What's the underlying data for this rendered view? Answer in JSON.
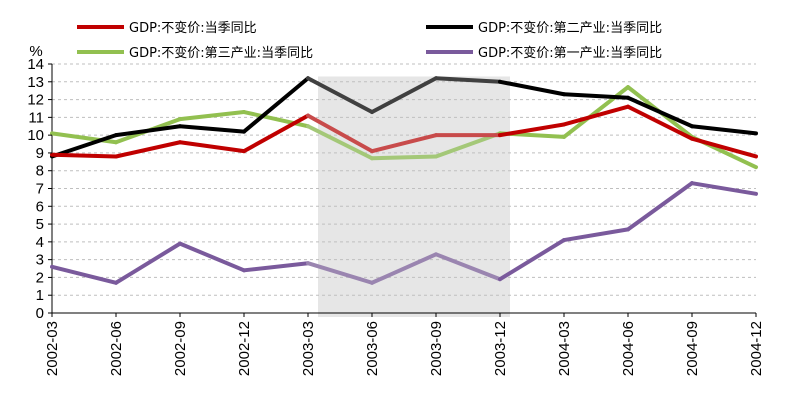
{
  "chart_data": {
    "type": "line",
    "title": "",
    "xlabel": "",
    "ylabel": "%",
    "ylim": [
      0,
      14
    ],
    "yticks": [
      0,
      1,
      2,
      3,
      4,
      5,
      6,
      7,
      8,
      9,
      10,
      11,
      12,
      13,
      14
    ],
    "grid": "horizontal dashed",
    "legend_position": "top",
    "highlight": {
      "from": "2003-03",
      "to": "2003-12",
      "color": "#e6e6e6"
    },
    "categories": [
      "2002-03",
      "2002-06",
      "2002-09",
      "2002-12",
      "2003-03",
      "2003-06",
      "2003-09",
      "2003-12",
      "2004-03",
      "2004-06",
      "2004-09",
      "2004-12"
    ],
    "series": [
      {
        "name": "GDP:不变价:当季同比",
        "color": "#c00000",
        "highlight_color": "#c84b4b",
        "values": [
          8.9,
          8.8,
          9.6,
          9.1,
          11.1,
          9.1,
          10.0,
          10.0,
          10.6,
          11.6,
          9.8,
          8.8
        ]
      },
      {
        "name": "GDP:不变价:第二产业:当季同比",
        "color": "#000000",
        "highlight_color": "#404040",
        "values": [
          8.8,
          10.0,
          10.5,
          10.2,
          13.2,
          11.3,
          13.2,
          13.0,
          12.3,
          12.1,
          10.5,
          10.1
        ]
      },
      {
        "name": "GDP:不变价:第三产业:当季同比",
        "color": "#92c050",
        "highlight_color": "#a4c878",
        "values": [
          10.1,
          9.6,
          10.9,
          11.3,
          10.5,
          8.7,
          8.8,
          10.1,
          9.9,
          12.7,
          9.9,
          8.2
        ]
      },
      {
        "name": "GDP:不变价:第一产业:当季同比",
        "color": "#7a5a9c",
        "highlight_color": "#9a85b0",
        "values": [
          2.6,
          1.7,
          3.9,
          2.4,
          2.8,
          1.7,
          3.3,
          1.9,
          4.1,
          4.7,
          7.3,
          6.7
        ]
      }
    ]
  }
}
